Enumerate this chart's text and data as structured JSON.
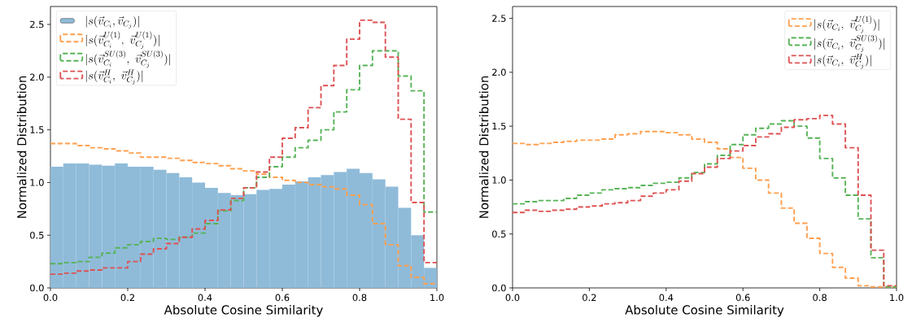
{
  "chart_data": [
    {
      "type": "histogram",
      "xlabel": "Absolute Cosine Similarity",
      "ylabel": "Normalized Distribution",
      "legend": "top left",
      "xlim": [
        0,
        1
      ],
      "ylim": [
        0,
        2.67
      ],
      "xticks": [
        {
          "value": 0,
          "label": "0.0"
        },
        {
          "value": 0.2,
          "label": "0.2"
        },
        {
          "value": 0.4,
          "label": "0.4"
        },
        {
          "value": 0.6,
          "label": "0.6"
        },
        {
          "value": 0.8,
          "label": "0.8"
        },
        {
          "value": 1,
          "label": "1.0"
        }
      ],
      "yticks": [
        {
          "value": 0,
          "label": "0.0"
        },
        {
          "value": 0.5,
          "label": "0.5"
        },
        {
          "value": 1,
          "label": "1.0"
        },
        {
          "value": 1.5,
          "label": "1.5"
        },
        {
          "value": 2,
          "label": "2.0"
        },
        {
          "value": 2.5,
          "label": "2.5"
        }
      ],
      "bins": [
        0,
        0.0333,
        0.0667,
        0.1,
        0.1333,
        0.1667,
        0.2,
        0.2333,
        0.2667,
        0.3,
        0.3333,
        0.3667,
        0.4,
        0.4333,
        0.4667,
        0.5,
        0.5333,
        0.5667,
        0.6,
        0.6333,
        0.6667,
        0.7,
        0.7333,
        0.7667,
        0.8,
        0.8333,
        0.8667,
        0.9,
        0.9333,
        0.9667,
        1
      ],
      "series": [
        {
          "name": "|s(\\vec{v}_{C_i}, \\vec{v}_{C_j})|",
          "color": "#8fbbd9",
          "values": [
            1.15,
            1.18,
            1.18,
            1.17,
            1.16,
            1.18,
            1.15,
            1.15,
            1.12,
            1.09,
            1.05,
            1.0,
            0.95,
            0.9,
            0.88,
            0.89,
            0.93,
            0.94,
            0.98,
            1.01,
            1.05,
            1.07,
            1.1,
            1.13,
            1.09,
            1.03,
            0.96,
            0.76,
            0.5,
            0.19
          ]
        },
        {
          "name": "|s(\\vec{v}_{C_i}^{U(1)},\\ \\vec{v}_{C_j}^{U(1)})|",
          "type": "step",
          "line_style": "dashed",
          "color": "#ffa04f",
          "x": [
            0,
            0.0333,
            0.0667,
            0.1,
            0.1333,
            0.1667,
            0.2,
            0.2333,
            0.2667,
            0.3,
            0.3333,
            0.3667,
            0.4,
            0.4333,
            0.4667,
            0.5,
            0.5333,
            0.5667,
            0.6,
            0.6333,
            0.6667,
            0.7,
            0.7333,
            0.7667,
            0.8,
            0.8333,
            0.8667,
            0.9,
            0.9333,
            0.9667,
            1
          ],
          "values": [
            1.37,
            1.37,
            1.35,
            1.33,
            1.32,
            1.3,
            1.28,
            1.24,
            1.24,
            1.23,
            1.21,
            1.19,
            1.18,
            1.16,
            1.13,
            1.11,
            1.08,
            1.05,
            1.02,
            1.0,
            0.98,
            0.96,
            0.94,
            0.88,
            0.79,
            0.61,
            0.41,
            0.21,
            0.1,
            0.04,
            0.04
          ]
        },
        {
          "name": "|s(\\vec{v}_{C_i}^{SU(3)},\\ \\vec{v}_{C_j}^{SU(3)})|",
          "type": "step",
          "line_style": "dashed",
          "color": "#56b356",
          "x": [
            0,
            0.0333,
            0.0667,
            0.1,
            0.1333,
            0.1667,
            0.2,
            0.2333,
            0.2667,
            0.3,
            0.3333,
            0.3667,
            0.4,
            0.4333,
            0.4667,
            0.5,
            0.5333,
            0.5667,
            0.6,
            0.6333,
            0.6667,
            0.7,
            0.7333,
            0.7667,
            0.8,
            0.8333,
            0.8667,
            0.9,
            0.9333,
            0.9667,
            1
          ],
          "values": [
            0.23,
            0.24,
            0.25,
            0.29,
            0.33,
            0.38,
            0.41,
            0.44,
            0.47,
            0.46,
            0.48,
            0.52,
            0.61,
            0.73,
            0.83,
            0.95,
            1.05,
            1.15,
            1.24,
            1.33,
            1.4,
            1.5,
            1.67,
            1.88,
            2.11,
            2.25,
            2.25,
            2.01,
            1.87,
            0.72,
            0.72
          ]
        },
        {
          "name": "|s(\\vec{v}_{C_i}^{H},\\ \\vec{v}_{C_j}^{H})|",
          "type": "step",
          "line_style": "dashed",
          "color": "#de5253",
          "x": [
            0,
            0.0333,
            0.0667,
            0.1,
            0.1333,
            0.1667,
            0.2,
            0.2333,
            0.2667,
            0.3,
            0.3333,
            0.3667,
            0.4,
            0.4333,
            0.4667,
            0.5,
            0.5333,
            0.5667,
            0.6,
            0.6333,
            0.6667,
            0.7,
            0.7333,
            0.7667,
            0.8,
            0.8333,
            0.8667,
            0.9,
            0.9333,
            0.9667,
            1
          ],
          "values": [
            0.13,
            0.14,
            0.16,
            0.17,
            0.19,
            0.19,
            0.25,
            0.32,
            0.37,
            0.42,
            0.48,
            0.56,
            0.64,
            0.74,
            0.85,
            0.95,
            1.1,
            1.24,
            1.42,
            1.52,
            1.71,
            1.92,
            2.11,
            2.36,
            2.54,
            2.52,
            2.19,
            1.6,
            0.81,
            0.24,
            0.24
          ]
        }
      ]
    },
    {
      "type": "step",
      "xlabel": "Absolute Cosine Similarity",
      "ylabel": "Normalized Distribution",
      "legend": "top right",
      "line_style": "dashed",
      "xlim": [
        0,
        1
      ],
      "ylim": [
        0,
        2.61
      ],
      "xticks": [
        {
          "value": 0,
          "label": "0.0"
        },
        {
          "value": 0.2,
          "label": "0.2"
        },
        {
          "value": 0.4,
          "label": "0.4"
        },
        {
          "value": 0.6,
          "label": "0.6"
        },
        {
          "value": 0.8,
          "label": "0.8"
        },
        {
          "value": 1,
          "label": "1.0"
        }
      ],
      "yticks": [
        {
          "value": 0,
          "label": "0.0"
        },
        {
          "value": 0.5,
          "label": "0.5"
        },
        {
          "value": 1,
          "label": "1.0"
        },
        {
          "value": 1.5,
          "label": "1.5"
        },
        {
          "value": 2,
          "label": "2.0"
        },
        {
          "value": 2.5,
          "label": "2.5"
        }
      ],
      "x": [
        0,
        0.0333,
        0.0667,
        0.1,
        0.1333,
        0.1667,
        0.2,
        0.2333,
        0.2667,
        0.3,
        0.3333,
        0.3667,
        0.4,
        0.4333,
        0.4667,
        0.5,
        0.5333,
        0.5667,
        0.6,
        0.6333,
        0.6667,
        0.7,
        0.7333,
        0.7667,
        0.8,
        0.8333,
        0.8667,
        0.9,
        0.9333,
        0.9667,
        1
      ],
      "series": [
        {
          "name": "|s(\\vec{v}_{C_i},\\ \\vec{v}_{C_j}^{U(1)})|",
          "color": "#ffa04f",
          "values": [
            1.34,
            1.33,
            1.34,
            1.35,
            1.36,
            1.37,
            1.37,
            1.38,
            1.42,
            1.43,
            1.45,
            1.45,
            1.44,
            1.42,
            1.38,
            1.35,
            1.29,
            1.21,
            1.11,
            1.0,
            0.88,
            0.74,
            0.6,
            0.46,
            0.32,
            0.19,
            0.09,
            0.02,
            0.01,
            0.01,
            0.01
          ]
        },
        {
          "name": "|s(\\vec{v}_{C_i},\\ \\vec{v}_{C_j}^{SU(3)})|",
          "color": "#56b356",
          "values": [
            0.78,
            0.8,
            0.81,
            0.81,
            0.83,
            0.86,
            0.88,
            0.91,
            0.92,
            0.93,
            0.95,
            0.97,
            0.98,
            1.02,
            1.07,
            1.15,
            1.23,
            1.33,
            1.42,
            1.48,
            1.52,
            1.55,
            1.5,
            1.39,
            1.2,
            1.02,
            0.86,
            0.64,
            0.28,
            0.01,
            0.01
          ]
        },
        {
          "name": "|s(\\vec{v}_{C_i},\\ \\vec{v}_{C_j}^{H})|",
          "color": "#de5253",
          "values": [
            0.7,
            0.72,
            0.71,
            0.72,
            0.73,
            0.75,
            0.76,
            0.78,
            0.79,
            0.81,
            0.85,
            0.88,
            0.91,
            0.99,
            1.06,
            1.12,
            1.2,
            1.27,
            1.32,
            1.4,
            1.43,
            1.49,
            1.56,
            1.57,
            1.6,
            1.52,
            1.3,
            0.86,
            0.35,
            0.02,
            0.02
          ]
        }
      ]
    }
  ]
}
